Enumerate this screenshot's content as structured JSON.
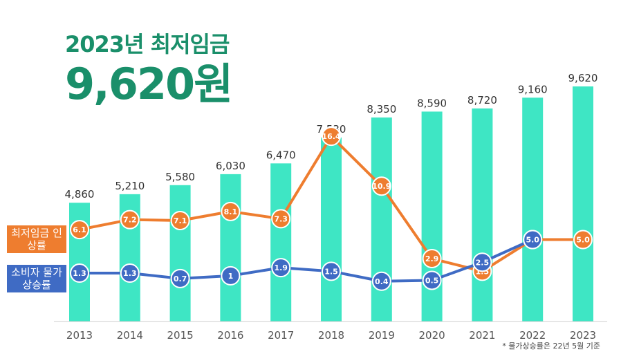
{
  "headline": {
    "subtitle": "2023년 최저임금",
    "amount": "9,620원"
  },
  "legend": {
    "wage_rate_label": "최저임금 인상률",
    "cpi_rate_label": "소비자 물가 상승률"
  },
  "footnote": "* 물가상승률은 22년 5월 기준",
  "colors": {
    "bar": "#3ee6c4",
    "wage_line": "#ee7d2f",
    "cpi_line": "#3f6bc4",
    "headline": "#1a8f6a"
  },
  "chart_data": {
    "type": "bar",
    "categories": [
      "2013",
      "2014",
      "2015",
      "2016",
      "2017",
      "2018",
      "2019",
      "2020",
      "2021",
      "2022",
      "2023"
    ],
    "series": [
      {
        "name": "",
        "type": "bar",
        "values": [
          4860,
          5210,
          5580,
          6030,
          6470,
          7530,
          8350,
          8590,
          8720,
          9160,
          9620
        ],
        "labels": [
          "4,860",
          "5,210",
          "5,580",
          "6,030",
          "6,470",
          "7,530",
          "8,350",
          "8,590",
          "8,720",
          "9,160",
          "9,620"
        ]
      },
      {
        "name": "최저임금 인상률",
        "type": "line",
        "values": [
          6.1,
          7.2,
          7.1,
          8.1,
          7.3,
          16.4,
          10.9,
          2.9,
          1.5,
          5.0,
          5.0
        ],
        "labels": [
          "6.1",
          "7.2",
          "7.1",
          "8.1",
          "7.3",
          "16.4",
          "10.9",
          "2.9",
          "1.5",
          "5.0",
          "5.0"
        ]
      },
      {
        "name": "소비자 물가 상승률",
        "type": "line",
        "values": [
          1.3,
          1.3,
          0.7,
          1,
          1.9,
          1.5,
          0.4,
          0.5,
          2.5,
          5.0,
          null
        ],
        "labels": [
          "1.3",
          "1.3",
          "0.7",
          "1",
          "1.9",
          "1.5",
          "0.4",
          "0.5",
          "2.5",
          "5.0",
          ""
        ]
      }
    ],
    "grid": false,
    "legend_position": "left"
  }
}
